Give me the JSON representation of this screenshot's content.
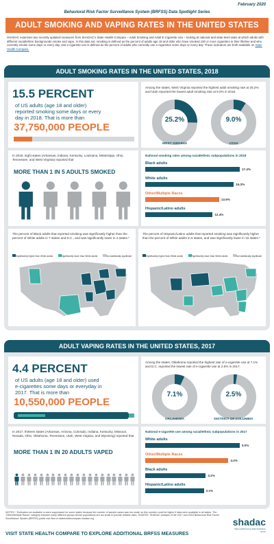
{
  "header": {
    "date": "February 2020",
    "series": "Behavioral Risk Factor Surveillance System (BRFSS) Data Spotlight Series",
    "title": "ADULT SMOKING AND VAPING RATES IN THE UNITED STATES",
    "intro": "SHADAC examines two recently updated measures from SHADAC's State Health Compare – Adult Smoking and Adult E-Cigarette Use – looking at national and state-level rates at which adults with different racial/ethnic backgrounds smoke and vape. In this data set, smoking is defined as the percent of adults age 18 and older who have smoked 100 or more cigarettes in their lifetime and who currently smoke some days or every day, and e-cigarette use is defined as the percent of adults who currently use e-cigarettes some days or every day. These indicators are both available on",
    "intro_link": "State Health Compare."
  },
  "smoking": {
    "band_title": "ADULT SMOKING RATES IN THE UNITED STATES, 2018",
    "headline": "15.5 PERCENT",
    "sub": "of US adults (age 18 and older) reported smoking some days or every day in 2018. That is more than",
    "people": "37,750,000 PEOPLE",
    "bar_fraction": 0.155,
    "states_text": "Among the states, West Virginia reported the highest adult smoking rate at 25.2% and Utah reported the lowest adult smoking rate at 9.0% in 2018.",
    "donuts": [
      {
        "value": "25.2%",
        "label": "WEST VIRGINIA",
        "fraction": 0.252
      },
      {
        "value": "9.0%",
        "label": "UTAH",
        "fraction": 0.09
      }
    ],
    "eight_states": "In 2018, eight states (Arkansas, Indiana, Kentucky, Louisiana, Mississippi, Ohio, Tennessee, and West Virginia) reported that",
    "one_in": "MORE THAN 1 IN 5 ADULTS SMOKED",
    "race_title": "National smoking rates among racial/ethnic subpopulations in 2018",
    "race_bars": [
      {
        "label": "Black adults",
        "value": "17.4%",
        "v": 17.4,
        "color": "#17576a"
      },
      {
        "label": "White adults",
        "value": "16.3%",
        "v": 16.3,
        "color": "#17576a"
      },
      {
        "label": "Other/Multiple Races",
        "value": "13.6%",
        "v": 13.6,
        "color": "#e8763a"
      },
      {
        "label": "Hispanic/Latino adults",
        "value": "12.4%",
        "v": 12.4,
        "color": "#17576a"
      }
    ],
    "map1_text": "The percent of Black adults that reported smoking was significantly higher than the percent of White adults in 7 states and D.C., and was significantly lower in 4 states.*",
    "map2_text": "The percent of Hispanic/Latino adults that reported smoking was significantly higher than the percent of White adults in 6 states, and was significantly lower in 15 states.*",
    "legend": [
      "Significantly higher than White adults",
      "Significantly lower than White adults",
      "Not statistically significant"
    ]
  },
  "vaping": {
    "band_title": "ADULT VAPING RATES IN THE UNITED STATES, 2017",
    "headline": "4.4 PERCENT",
    "sub": "of US adults (age 18 and older) used e-cigarettes some days or everyday in 2017. That is more than",
    "people": "10,550,000 PEOPLE",
    "states_text": "Among the states, Oklahoma reported the highest rate of e-cigarette use at 7.1% and D.C. reported the lowest rate of e-cigarette use at 2.5% in 2017.",
    "donuts": [
      {
        "value": "7.1%",
        "label": "OKLAHOMA",
        "fraction": 0.071
      },
      {
        "value": "2.5%",
        "label": "DISTRICT OF COLUMBIA",
        "fraction": 0.025
      }
    ],
    "thirteen": "In 2017, thirteen states (Arkansas, Arizona, Colorado, Indiana, Kentucky, Missouri, Nevada, Ohio, Oklahoma, Tennessee, Utah, West Virginia, and Wyoming) reported that",
    "one_in": "MORE THAN 1 IN 20 ADULTS VAPED",
    "race_title": "National e-cigarette use among racial/ethnic subpopulations in 2017",
    "race_bars": [
      {
        "label": "White adults",
        "value": "5.0%",
        "v": 5.0,
        "color": "#17576a"
      },
      {
        "label": "Other/Multiple Races",
        "value": "4.4%",
        "v": 4.4,
        "color": "#e8763a"
      },
      {
        "label": "Black adults",
        "value": "3.2%",
        "v": 3.2,
        "color": "#17576a"
      },
      {
        "label": "Hispanic/Latino adults",
        "value": "3.1%",
        "v": 3.1,
        "color": "#17576a"
      }
    ]
  },
  "footer": {
    "notes": "NOTES: * Estimates not available or were suppressed for some states because the number of sample cases was too small, so this number could be higher if data were available in all states. The \"Other/Multiple Races\" category includes many different groups whose populations are too small to provide reliable rates. SOURCE: SHADAC analysis of the 2017 and 2018 Behavioral Risk Factor Surveillance System (BRFSS) public use files on statehealthcompare.shadac.org",
    "cta": "VISIT STATE HEALTH COMPARE TO EXPLORE ADDITIONAL BRFSS MEASURES",
    "logo": "shadac",
    "logo_sub": "State Health Access Data Assistance Center"
  }
}
